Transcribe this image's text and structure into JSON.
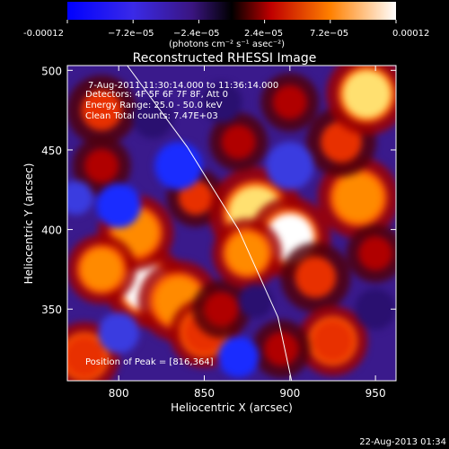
{
  "colorbar": {
    "ticks": [
      "-0.00012",
      "−7.2e−05",
      "−2.4e−05",
      "2.4e−05",
      "7.2e−05",
      "0.00012"
    ],
    "unit_label": "(photons cm⁻² s⁻¹ asec⁻²)",
    "colors": [
      "#0000ff",
      "#5a3cdc",
      "#000000",
      "#d00000",
      "#ff9000",
      "#ffffff"
    ]
  },
  "footer": {
    "timestamp": "22-Aug-2013 01:34"
  },
  "chart_data": {
    "type": "heatmap",
    "title": "Reconstructed RHESSI Image",
    "xlabel": "Heliocentric X (arcsec)",
    "ylabel": "Heliocentric Y (arcsec)",
    "xlim": [
      770,
      962
    ],
    "ylim": [
      305,
      503
    ],
    "xticks": [
      800,
      850,
      900,
      950
    ],
    "yticks": [
      350,
      400,
      450,
      500
    ],
    "annotations": [
      "7-Aug-2011 11:30:14.000 to 11:36:14.000",
      "Detectors: 4F 5F 6F 7F 8F, Att 0",
      "Energy Range: 25.0 - 50.0 keV",
      "Clean     Total counts: 7.47E+03"
    ],
    "peak_label": "Position of Peak = [816,364]",
    "peak": {
      "x": 816,
      "y": 364
    },
    "limb": [
      [
        805,
        503
      ],
      [
        840,
        452
      ],
      [
        870,
        400
      ],
      [
        893,
        345
      ],
      [
        901,
        305
      ]
    ],
    "sources": [
      {
        "x": 816,
        "y": 364,
        "v": 1.0,
        "s": 14
      },
      {
        "x": 810,
        "y": 398,
        "v": 0.7,
        "s": 13
      },
      {
        "x": 790,
        "y": 375,
        "v": 0.6,
        "s": 12
      },
      {
        "x": 835,
        "y": 355,
        "v": 0.65,
        "s": 14
      },
      {
        "x": 850,
        "y": 335,
        "v": 0.55,
        "s": 12
      },
      {
        "x": 860,
        "y": 350,
        "v": 0.35,
        "s": 10
      },
      {
        "x": 780,
        "y": 320,
        "v": 0.55,
        "s": 12
      },
      {
        "x": 845,
        "y": 420,
        "v": 0.5,
        "s": 10
      },
      {
        "x": 880,
        "y": 410,
        "v": 0.85,
        "s": 16
      },
      {
        "x": 900,
        "y": 395,
        "v": 0.9,
        "s": 14
      },
      {
        "x": 875,
        "y": 385,
        "v": 0.65,
        "s": 12
      },
      {
        "x": 915,
        "y": 370,
        "v": 0.5,
        "s": 12
      },
      {
        "x": 940,
        "y": 420,
        "v": 0.6,
        "s": 14
      },
      {
        "x": 930,
        "y": 455,
        "v": 0.5,
        "s": 12
      },
      {
        "x": 945,
        "y": 485,
        "v": 0.75,
        "s": 14
      },
      {
        "x": 900,
        "y": 480,
        "v": 0.35,
        "s": 10
      },
      {
        "x": 790,
        "y": 475,
        "v": 0.5,
        "s": 12
      },
      {
        "x": 870,
        "y": 455,
        "v": 0.4,
        "s": 10
      },
      {
        "x": 925,
        "y": 330,
        "v": 0.55,
        "s": 12
      },
      {
        "x": 895,
        "y": 325,
        "v": 0.35,
        "s": 10
      },
      {
        "x": 950,
        "y": 385,
        "v": 0.35,
        "s": 10
      },
      {
        "x": 790,
        "y": 440,
        "v": 0.3,
        "s": 10
      },
      {
        "x": 800,
        "y": 415,
        "v": -0.7,
        "s": 13
      },
      {
        "x": 835,
        "y": 440,
        "v": -0.75,
        "s": 14
      },
      {
        "x": 870,
        "y": 320,
        "v": -0.75,
        "s": 12
      },
      {
        "x": 800,
        "y": 335,
        "v": -0.5,
        "s": 12
      },
      {
        "x": 880,
        "y": 355,
        "v": -0.4,
        "s": 10
      },
      {
        "x": 900,
        "y": 440,
        "v": -0.55,
        "s": 14
      },
      {
        "x": 820,
        "y": 470,
        "v": -0.4,
        "s": 12
      },
      {
        "x": 860,
        "y": 480,
        "v": -0.45,
        "s": 12
      },
      {
        "x": 950,
        "y": 350,
        "v": -0.45,
        "s": 12
      },
      {
        "x": 775,
        "y": 420,
        "v": -0.5,
        "s": 10
      }
    ]
  }
}
